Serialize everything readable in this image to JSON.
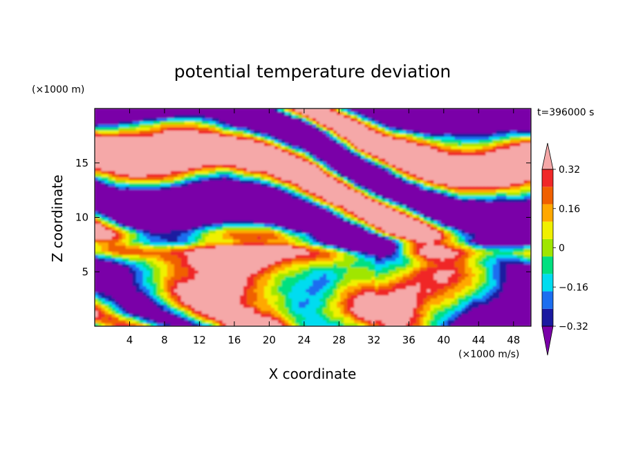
{
  "chart_data": {
    "type": "heatmap",
    "title": "potential temperature deviation",
    "xlabel": "X coordinate",
    "ylabel": "Z coordinate",
    "x_unit": "(×1000 m/s)",
    "y_unit": "(×1000 m)",
    "time_label": "t=396000 s",
    "xlim": [
      0,
      50
    ],
    "ylim": [
      0,
      20
    ],
    "x_ticks": [
      4,
      8,
      12,
      16,
      20,
      24,
      28,
      32,
      36,
      40,
      44,
      48
    ],
    "y_ticks": [
      5,
      10,
      15
    ],
    "colorbar": {
      "levels": [
        -0.4,
        -0.32,
        -0.24,
        -0.16,
        -0.08,
        0,
        0.08,
        0.16,
        0.24,
        0.32,
        0.4
      ],
      "tick_labels": [
        "0.32",
        "0.16",
        "0",
        "−0.16",
        "−0.32"
      ],
      "tick_values": [
        0.32,
        0.16,
        0,
        -0.16,
        -0.32
      ],
      "colors": [
        "#7a00a8",
        "#1a1aa0",
        "#1c6ef0",
        "#00dcf0",
        "#00e080",
        "#a0e600",
        "#f0f000",
        "#ffa800",
        "#f06000",
        "#f02828",
        "#f5a8a8"
      ],
      "extend": "both"
    }
  }
}
